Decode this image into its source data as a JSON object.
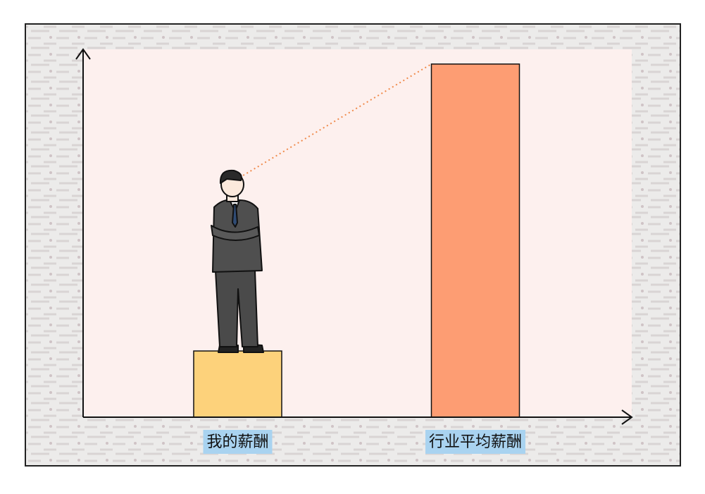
{
  "chart_data": {
    "type": "bar",
    "categories": [
      "我的薪酬",
      "行业平均薪酬"
    ],
    "values": [
      18,
      96
    ],
    "colors": [
      "#fdd27b",
      "#fd9d73"
    ],
    "ylim": [
      0,
      100
    ]
  }
}
